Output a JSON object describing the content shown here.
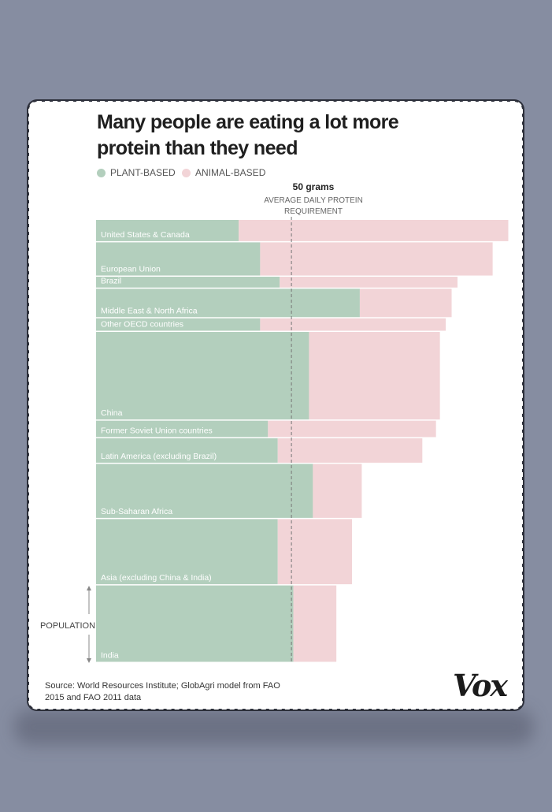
{
  "title": "Many people are eating a lot more protein than they need",
  "legend": {
    "plant_label": "PLANT-BASED",
    "animal_label": "ANIMAL-BASED",
    "plant_color": "#b3cfbd",
    "animal_color": "#f2d4d7"
  },
  "reference": {
    "value": 50,
    "label": "50 grams",
    "caption_line1": "AVERAGE DAILY PROTEIN",
    "caption_line2": "REQUIREMENT"
  },
  "population_label": "POPULATION",
  "source": "Source: World Resources Institute; GlobAgri model from FAO 2015 and FAO 2011 data",
  "logo": "Vox",
  "chart_data": {
    "type": "bar",
    "orientation": "horizontal-stacked-variable-height",
    "value_unit": "grams of protein per person per day",
    "height_encodes": "population",
    "reference_line": 50,
    "xlim": [
      0,
      105
    ],
    "categories": [
      "United States & Canada",
      "European Union",
      "Brazil",
      "Middle East & North Africa",
      "Other OECD countries",
      "China",
      "Former Soviet Union countries",
      "Latin America (excluding Brazil)",
      "Sub-Saharan Africa",
      "Asia (excluding China  & India)",
      "India"
    ],
    "series": [
      {
        "name": "PLANT-BASED",
        "values": [
          36.5,
          42,
          47,
          67.5,
          42,
          54.5,
          44,
          46.5,
          55.5,
          46.5,
          50.5
        ]
      },
      {
        "name": "ANIMAL-BASED",
        "values": [
          69,
          59.5,
          45.5,
          23.5,
          47.5,
          33.5,
          43,
          37,
          12.5,
          19,
          11
        ]
      }
    ],
    "population_relative": [
      28,
      43,
      15,
      37,
      17,
      111,
      22,
      32,
      69,
      83,
      97
    ]
  }
}
